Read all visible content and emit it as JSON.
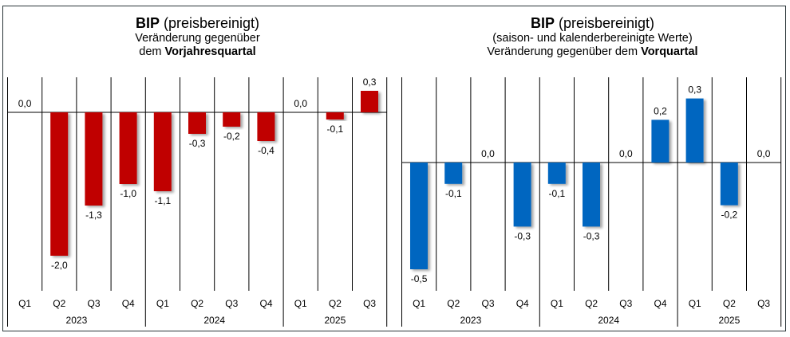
{
  "chart_data": [
    {
      "type": "bar",
      "title": "BIP (preisbereinigt)",
      "title_bold_part": "BIP",
      "title_rest": " (preisbereinigt)",
      "subtitle_lines": [
        {
          "normal": "Veränderung gegenüber",
          "bold": ""
        },
        {
          "normal": "dem ",
          "bold": "Vorjahresquartal"
        }
      ],
      "categories": [
        "Q1",
        "Q2",
        "Q3",
        "Q4",
        "Q1",
        "Q2",
        "Q3",
        "Q4",
        "Q1",
        "Q2",
        "Q3"
      ],
      "year_groups": [
        {
          "label": "2023",
          "count": 4
        },
        {
          "label": "2024",
          "count": 4
        },
        {
          "label": "2025",
          "count": 3
        }
      ],
      "values": [
        0.0,
        -2.0,
        -1.3,
        -1.0,
        -1.1,
        -0.3,
        -0.2,
        -0.4,
        0.0,
        -0.1,
        0.3
      ],
      "value_labels": [
        "0,0",
        "-2,0",
        "-1,3",
        "-1,0",
        "-1,1",
        "-0,3",
        "-0,2",
        "-0,4",
        "0,0",
        "-0,1",
        "0,3"
      ],
      "ylim": [
        -2.0,
        0.3
      ],
      "bar_color": "#c00000",
      "xlabel": "",
      "ylabel": "",
      "grid": false,
      "legend": "none"
    },
    {
      "type": "bar",
      "title": "BIP (preisbereinigt)",
      "title_bold_part": "BIP",
      "title_rest": " (preisbereinigt)",
      "subtitle_lines": [
        {
          "normal": "(saison- und kalenderbereinigte Werte)",
          "bold": ""
        },
        {
          "normal": "Veränderung gegenüber dem ",
          "bold": "Vorquartal"
        }
      ],
      "categories": [
        "Q1",
        "Q2",
        "Q3",
        "Q4",
        "Q1",
        "Q2",
        "Q3",
        "Q4",
        "Q1",
        "Q2",
        "Q3"
      ],
      "year_groups": [
        {
          "label": "2023",
          "count": 4
        },
        {
          "label": "2024",
          "count": 4
        },
        {
          "label": "2025",
          "count": 3
        }
      ],
      "values": [
        -0.5,
        -0.1,
        0.0,
        -0.3,
        -0.1,
        -0.3,
        0.0,
        0.2,
        0.3,
        -0.2,
        0.0
      ],
      "value_labels": [
        "-0,5",
        "-0,1",
        "0,0",
        "-0,3",
        "-0,1",
        "-0,3",
        "0,0",
        "0,2",
        "0,3",
        "-0,2",
        "0,0"
      ],
      "ylim": [
        -0.5,
        0.3
      ],
      "bar_color": "#0066c0",
      "xlabel": "",
      "ylabel": "",
      "grid": false,
      "legend": "none"
    }
  ]
}
